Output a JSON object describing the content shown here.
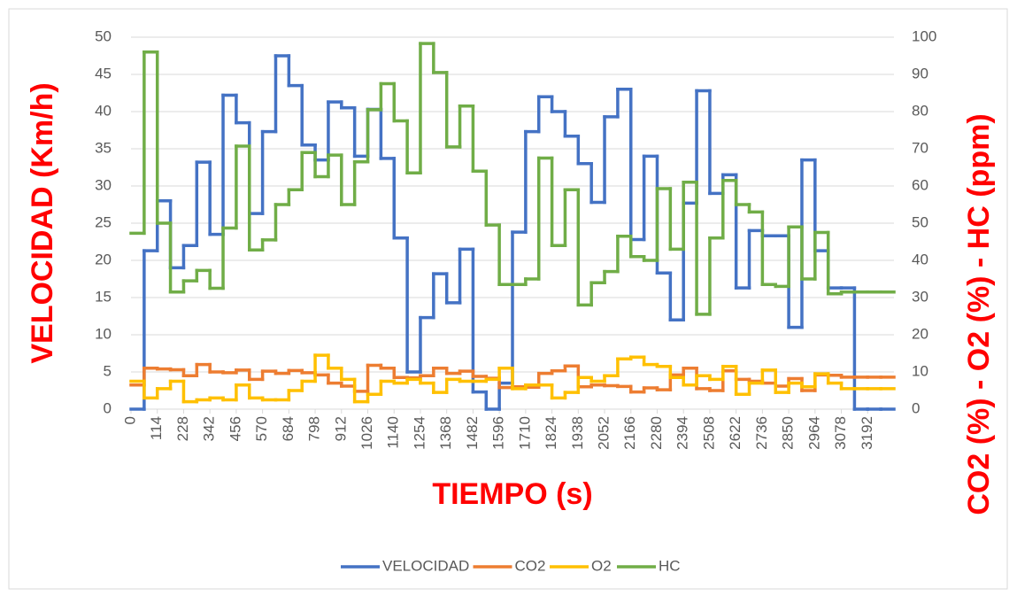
{
  "chart_data": {
    "type": "line",
    "step": true,
    "x_label": "TIEMPO (s)",
    "y_label": "VELOCIDAD (Km/h)",
    "y2_label": "CO2 (%) - O2 (%) - HC (ppm)",
    "x": [
      0,
      57,
      114,
      171,
      228,
      285,
      342,
      399,
      456,
      513,
      570,
      627,
      684,
      741,
      798,
      855,
      912,
      969,
      1026,
      1083,
      1140,
      1197,
      1254,
      1311,
      1368,
      1425,
      1482,
      1539,
      1596,
      1653,
      1710,
      1767,
      1824,
      1881,
      1938,
      1995,
      2052,
      2109,
      2166,
      2223,
      2280,
      2337,
      2394,
      2451,
      2508,
      2565,
      2622,
      2679,
      2736,
      2793,
      2850,
      2907,
      2964,
      3021,
      3078,
      3135,
      3192,
      3249
    ],
    "xlim": [
      0,
      3306
    ],
    "xticks": [
      0,
      114,
      228,
      342,
      456,
      570,
      684,
      798,
      912,
      1026,
      1140,
      1254,
      1368,
      1482,
      1596,
      1710,
      1824,
      1938,
      2052,
      2166,
      2280,
      2394,
      2508,
      2622,
      2736,
      2850,
      2964,
      3078,
      3192
    ],
    "ylim": [
      0,
      50
    ],
    "yticks": [
      0,
      5,
      10,
      15,
      20,
      25,
      30,
      35,
      40,
      45,
      50
    ],
    "y2lim": [
      0,
      100
    ],
    "y2ticks": [
      0,
      10,
      20,
      30,
      40,
      50,
      60,
      70,
      80,
      90,
      100
    ],
    "grid": true,
    "legend": "bottom",
    "series": [
      {
        "name": "VELOCIDAD",
        "color": "#4472c4",
        "axis": "y",
        "values": [
          0,
          21.3,
          28,
          19,
          22,
          33.2,
          23.5,
          42.2,
          38.5,
          26.3,
          37.3,
          47.5,
          43.5,
          35.5,
          33.5,
          41.3,
          40.5,
          34,
          40.3,
          33.7,
          23,
          5,
          12.3,
          18.2,
          14.3,
          21.5,
          2.3,
          0,
          3.5,
          23.8,
          37.3,
          42,
          40,
          36.7,
          33,
          27.8,
          39.3,
          43,
          22.8,
          34,
          18.3,
          12,
          27.7,
          42.8,
          29,
          31.5,
          16.3,
          24,
          23.3,
          23.3,
          11,
          33.5,
          21.3,
          16.3,
          16.3,
          0,
          0,
          0
        ]
      },
      {
        "name": "CO2",
        "color": "#ed7d31",
        "axis": "y2",
        "values": [
          6.5,
          11,
          10.8,
          10.6,
          9,
          12,
          10,
          9.8,
          10.5,
          8,
          10.2,
          9.6,
          10.4,
          9.8,
          9.2,
          7,
          6.2,
          4.8,
          11.8,
          11,
          8.5,
          8.4,
          9,
          11,
          9.6,
          10.2,
          8.8,
          8.3,
          5.8,
          6,
          5.9,
          9.6,
          10.3,
          11.6,
          6,
          6.5,
          6.3,
          6.1,
          4.6,
          5.7,
          5.2,
          9.2,
          11,
          5.5,
          5,
          10.3,
          8,
          7.5,
          7,
          6.2,
          8.2,
          5,
          9.2,
          9.1,
          8.6,
          8.6,
          8.6,
          8.6
        ]
      },
      {
        "name": "O2",
        "color": "#ffc000",
        "axis": "y2",
        "values": [
          7.5,
          3,
          5.5,
          7.5,
          2,
          2.5,
          3,
          2.5,
          6.5,
          3,
          2.5,
          2.5,
          5,
          7.5,
          14.5,
          11,
          8,
          2,
          4,
          7.5,
          7,
          8,
          7,
          4.5,
          8,
          7.5,
          7.5,
          8,
          11,
          5.5,
          6.5,
          6.5,
          3,
          4.5,
          8.5,
          7.5,
          9,
          13.5,
          14,
          12,
          11.5,
          8.5,
          6.5,
          9,
          8,
          11.5,
          4,
          7,
          10.5,
          4.5,
          7,
          6,
          9.5,
          7,
          5.5,
          5.5,
          5.5,
          5.5
        ]
      },
      {
        "name": "HC",
        "color": "#70ad47",
        "axis": "y2",
        "values": [
          47.3,
          96,
          50,
          31.5,
          34.5,
          37.3,
          32.5,
          48.7,
          70.7,
          42.8,
          45.5,
          55,
          59,
          69,
          62.5,
          68.3,
          55,
          66.5,
          80.5,
          87.5,
          77.5,
          63.5,
          98.3,
          90.5,
          70.5,
          81.5,
          64,
          49.5,
          33.5,
          33.5,
          35,
          67.5,
          44,
          59,
          28,
          34,
          37,
          46.5,
          41,
          40,
          59.3,
          43,
          61,
          25.5,
          46,
          61.5,
          55,
          53,
          33.5,
          33,
          49,
          35,
          47.5,
          31,
          31.5,
          31.5,
          31.5,
          31.5
        ]
      }
    ]
  }
}
